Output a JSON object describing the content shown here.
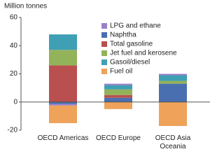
{
  "chart_data": {
    "type": "bar",
    "stacked": true,
    "y_label": "Million tonnes",
    "categories": [
      "OECD Americas",
      "OECD Europe",
      "OECD Asia Oceania"
    ],
    "series": [
      {
        "name": "LPG and ethane",
        "color": "#9b7fc9",
        "values": [
          -1,
          1,
          1
        ]
      },
      {
        "name": "Naphtha",
        "color": "#4a6fb0",
        "values": [
          -1.5,
          3,
          13
        ]
      },
      {
        "name": "Total gasoline",
        "color": "#b9504f",
        "values": [
          26,
          2,
          0
        ]
      },
      {
        "name": "Jet fuel and kerosene",
        "color": "#93b35a",
        "values": [
          11,
          4,
          2
        ]
      },
      {
        "name": "Gasoil/diesel",
        "color": "#3f9fb5",
        "values": [
          11,
          3,
          4
        ]
      },
      {
        "name": "Fuel oil",
        "color": "#eea25a",
        "values": [
          -12.5,
          -5,
          -17
        ]
      }
    ],
    "ylim": [
      -20,
      60
    ],
    "yticks": [
      -20,
      0,
      20,
      40,
      60
    ],
    "grid": false
  }
}
